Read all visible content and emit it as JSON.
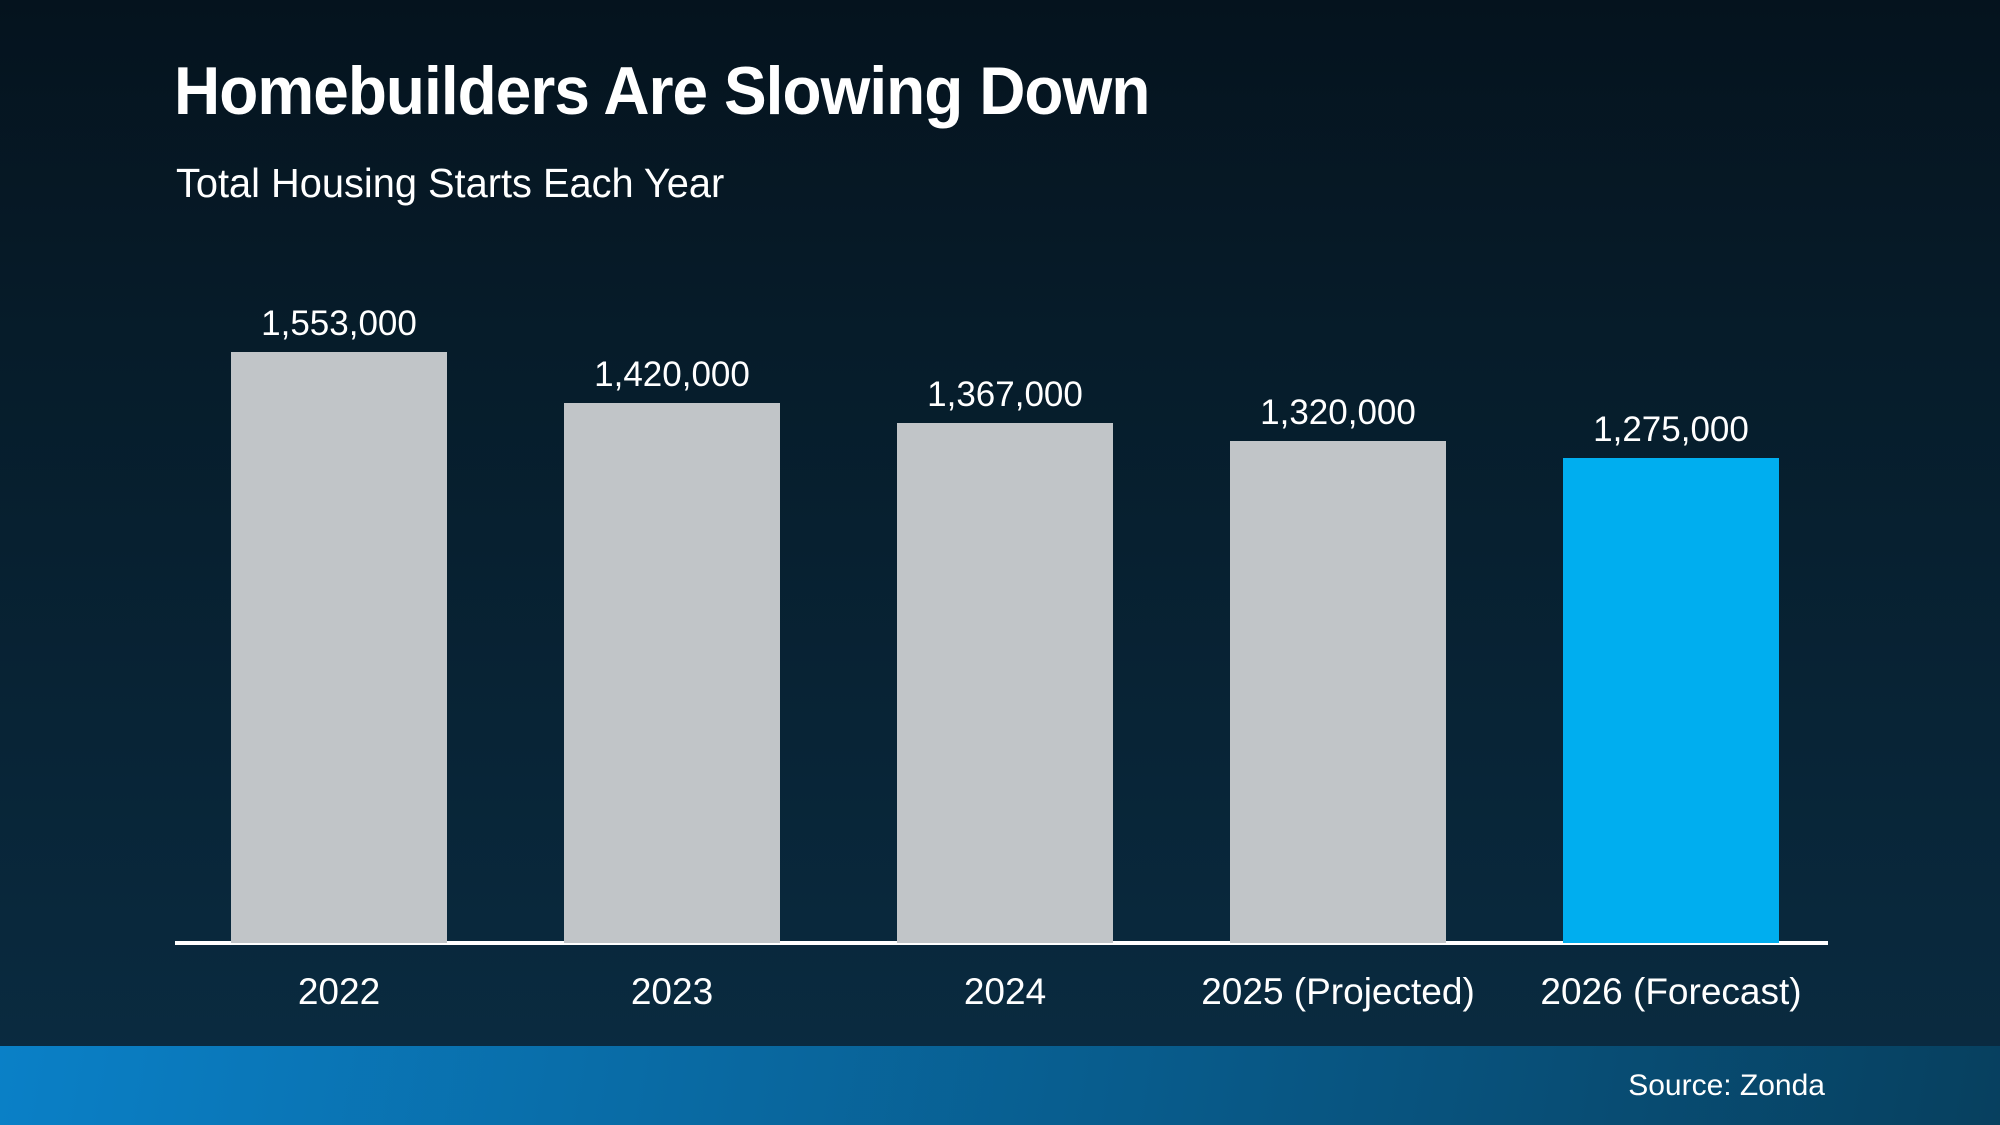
{
  "page": {
    "title": "Homebuilders Are Slowing Down",
    "subtitle": "Total Housing Starts Each Year"
  },
  "footer": {
    "source_label": "Source: Zonda"
  },
  "colors": {
    "background_top": "#05131e",
    "background_mid": "#061c2a",
    "background_bottom": "#0a2c42",
    "bar_default": "#c1c5c8",
    "bar_highlight": "#00aeef",
    "axis_line": "#ffffff",
    "text": "#ffffff",
    "footer_gradient_left": "#0a80c7",
    "footer_gradient_right": "#07405f"
  },
  "chart_data": {
    "type": "bar",
    "title": "Homebuilders Are Slowing Down",
    "subtitle": "Total Housing Starts Each Year",
    "categories": [
      "2022",
      "2023",
      "2024",
      "2025 (Projected)",
      "2026 (Forecast)"
    ],
    "values": [
      1553000,
      1420000,
      1367000,
      1320000,
      1275000
    ],
    "value_labels": [
      "1,553,000",
      "1,420,000",
      "1,367,000",
      "1,320,000",
      "1,275,000"
    ],
    "bar_colors": [
      "#c1c5c8",
      "#c1c5c8",
      "#c1c5c8",
      "#c1c5c8",
      "#00aeef"
    ],
    "highlight_index": 4,
    "xlabel": "",
    "ylabel": "",
    "ylim": [
      0,
      1553000
    ],
    "grid": false,
    "legend": false,
    "data_labels_position": "above-bars",
    "baseline_axis": "x"
  }
}
